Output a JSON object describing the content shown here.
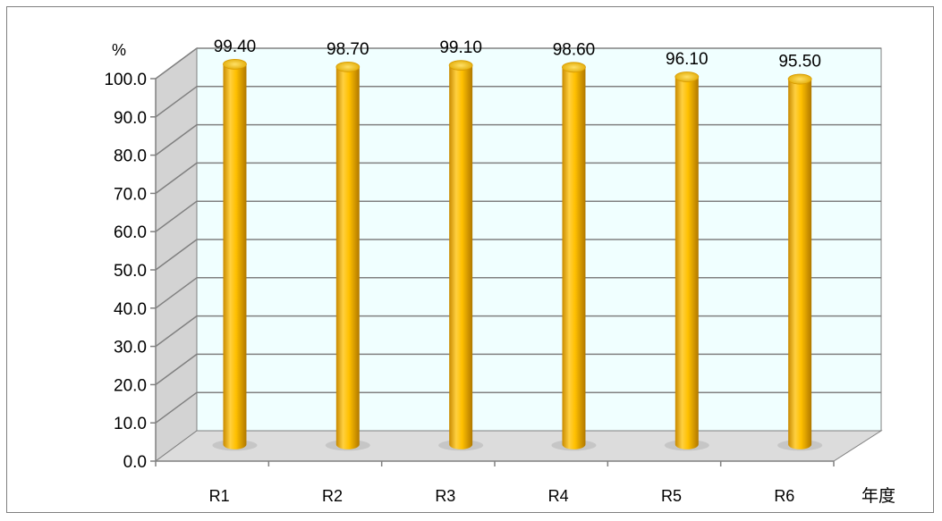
{
  "chart_data": {
    "type": "bar",
    "categories": [
      "R1",
      "R2",
      "R3",
      "R4",
      "R5",
      "R6"
    ],
    "values": [
      99.4,
      98.7,
      99.1,
      98.6,
      96.1,
      95.5
    ],
    "data_labels": [
      "99.40",
      "98.70",
      "99.10",
      "98.60",
      "96.10",
      "95.50"
    ],
    "title": "",
    "xlabel": "年度",
    "ylabel": "%",
    "ylim": [
      0,
      100
    ],
    "ytick_labels": [
      "0.0",
      "10.0",
      "20.0",
      "30.0",
      "40.0",
      "50.0",
      "60.0",
      "70.0",
      "80.0",
      "90.0",
      "100.0"
    ],
    "grid": true,
    "legend": "none",
    "style": "3d-cylinder",
    "colors": {
      "bar": "#FFC000",
      "bar_dark": "#C88A00",
      "wall_back": "#F0FFFF",
      "wall_side": "#D3D3D3",
      "floor": "#DCDCDC",
      "gridline": "#808080",
      "border": "#808080"
    }
  }
}
